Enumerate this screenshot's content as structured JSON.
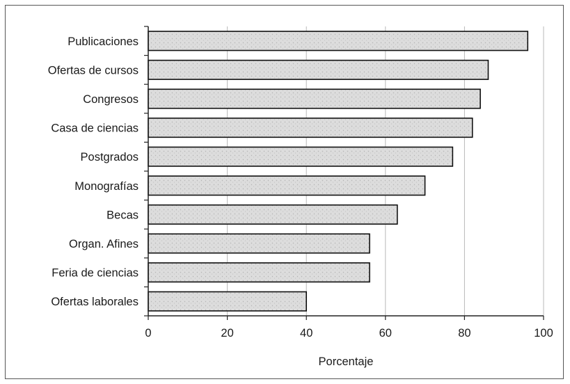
{
  "chart_data": {
    "type": "bar",
    "orientation": "horizontal",
    "title": "",
    "xlabel": "Porcentaje",
    "ylabel": "",
    "xlim": [
      0,
      100
    ],
    "x_ticks": [
      "0",
      "20",
      "40",
      "60",
      "80",
      "100"
    ],
    "grid": "vertical",
    "legend": "none",
    "categories": [
      "Publicaciones",
      "Ofertas de cursos",
      "Congresos",
      "Casa de ciencias",
      "Postgrados",
      "Monografías",
      "Becas",
      "Organ. Afines",
      "Feria de ciencias",
      "Ofertas laborales"
    ],
    "values": [
      96,
      86,
      84,
      82,
      77,
      70,
      63,
      56,
      56,
      40
    ],
    "colors": {
      "bar_fill": "#dcdcdc",
      "bar_stroke": "#111111",
      "grid": "#b8b8b8",
      "axis": "#222222"
    }
  }
}
